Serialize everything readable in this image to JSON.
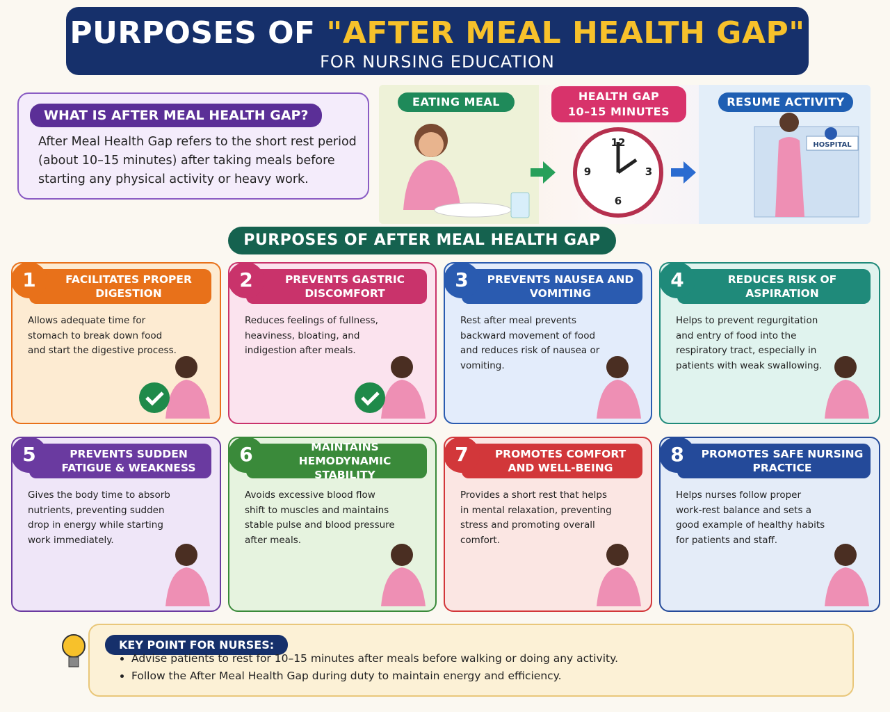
{
  "header": {
    "title_prefix": "PURPOSES OF",
    "title_highlight": "\"AFTER MEAL HEALTH GAP\"",
    "subtitle": "FOR NURSING EDUCATION"
  },
  "definition": {
    "heading": "WHAT IS AFTER MEAL HEALTH GAP?",
    "text": "After Meal Health Gap refers to the short rest period (about 10–15 minutes) after taking meals before starting any physical activity or heavy work."
  },
  "flow": {
    "steps": [
      {
        "lines": [
          "EATING MEAL"
        ]
      },
      {
        "lines": [
          "HEALTH GAP",
          "10–15 MINUTES"
        ]
      },
      {
        "lines": [
          "RESUME ACTIVITY"
        ]
      }
    ],
    "clock_numbers": [
      "12",
      "3",
      "6",
      "9"
    ],
    "hospital_sign": "HOSPITAL"
  },
  "purposes": {
    "heading": "PURPOSES OF AFTER MEAL HEALTH GAP",
    "cards": [
      {
        "number": "1",
        "title": "FACILITATES PROPER DIGESTION",
        "text": "Allows adequate time for stomach to break down food and start the digestive process."
      },
      {
        "number": "2",
        "title": "PREVENTS GASTRIC DISCOMFORT",
        "text": "Reduces feelings of fullness, heaviness, bloating, and indigestion after meals."
      },
      {
        "number": "3",
        "title": "PREVENTS NAUSEA AND VOMITING",
        "text": "Rest after meal prevents backward movement of food and reduces risk of nausea or vomiting."
      },
      {
        "number": "4",
        "title": "REDUCES RISK OF ASPIRATION",
        "text": "Helps to prevent regurgitation and entry of food into the respiratory tract, especially in patients with weak swallowing."
      },
      {
        "number": "5",
        "title": "PREVENTS SUDDEN FATIGUE & WEAKNESS",
        "text": "Gives the body time to absorb nutrients, preventing sudden drop in energy while starting work immediately."
      },
      {
        "number": "6",
        "title": "MAINTAINS HEMODYNAMIC STABILITY",
        "text": "Avoids excessive blood flow shift to muscles and maintains stable pulse and blood pressure after meals."
      },
      {
        "number": "7",
        "title": "PROMOTES COMFORT AND WELL-BEING",
        "text": "Provides a short rest that helps in mental relaxation, preventing stress and promoting overall comfort."
      },
      {
        "number": "8",
        "title": "PROMOTES SAFE NURSING PRACTICE",
        "text": "Helps nurses follow proper work-rest balance and sets a good example of healthy habits for patients and staff."
      }
    ]
  },
  "key_point": {
    "heading": "KEY POINT FOR NURSES:",
    "bullets": [
      "Advise patients to rest for 10–15 minutes after meals before walking or doing any activity.",
      "Follow the After Meal Health Gap during duty to maintain energy and efficiency."
    ]
  }
}
